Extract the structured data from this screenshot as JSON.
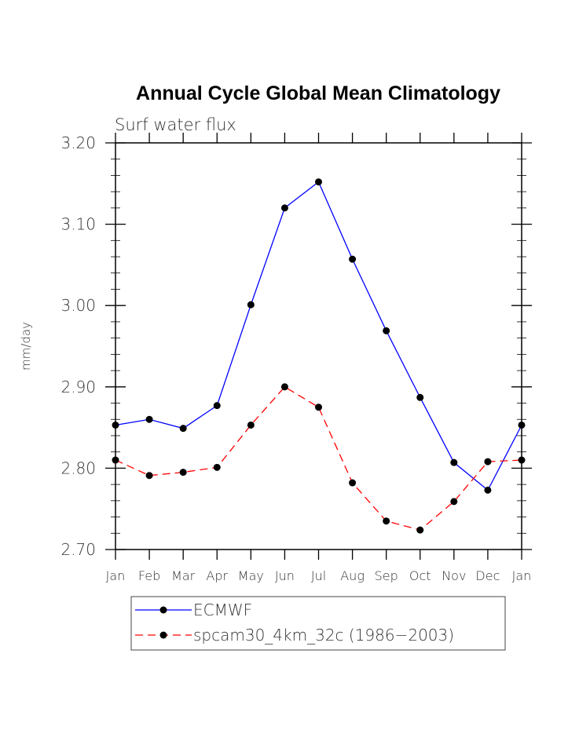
{
  "chart_data": {
    "type": "line",
    "title": "Annual Cycle Global Mean Climatology",
    "subtitle": "Surf water flux",
    "xlabel": "",
    "ylabel": "mm/day",
    "categories": [
      "Jan",
      "Feb",
      "Mar",
      "Apr",
      "May",
      "Jun",
      "Jul",
      "Aug",
      "Sep",
      "Oct",
      "Nov",
      "Dec",
      "Jan"
    ],
    "ylim": [
      2.7,
      3.2
    ],
    "yticks": [
      "2.70",
      "2.80",
      "2.90",
      "3.00",
      "3.10",
      "3.20"
    ],
    "grid": false,
    "legend_position": "bottom",
    "series": [
      {
        "name": "ECMWF",
        "color": "#0000ff",
        "dash": "solid",
        "marker": "filled-circle",
        "values": [
          2.853,
          2.86,
          2.849,
          2.877,
          3.001,
          3.12,
          3.152,
          3.057,
          2.969,
          2.887,
          2.807,
          2.773,
          2.853
        ]
      },
      {
        "name": "spcam30_4km_32c (1986−2003)",
        "color": "#ff0000",
        "dash": "dashed",
        "marker": "filled-circle",
        "values": [
          2.81,
          2.791,
          2.795,
          2.801,
          2.853,
          2.9,
          2.875,
          2.782,
          2.735,
          2.724,
          2.759,
          2.808,
          2.81
        ]
      }
    ]
  }
}
